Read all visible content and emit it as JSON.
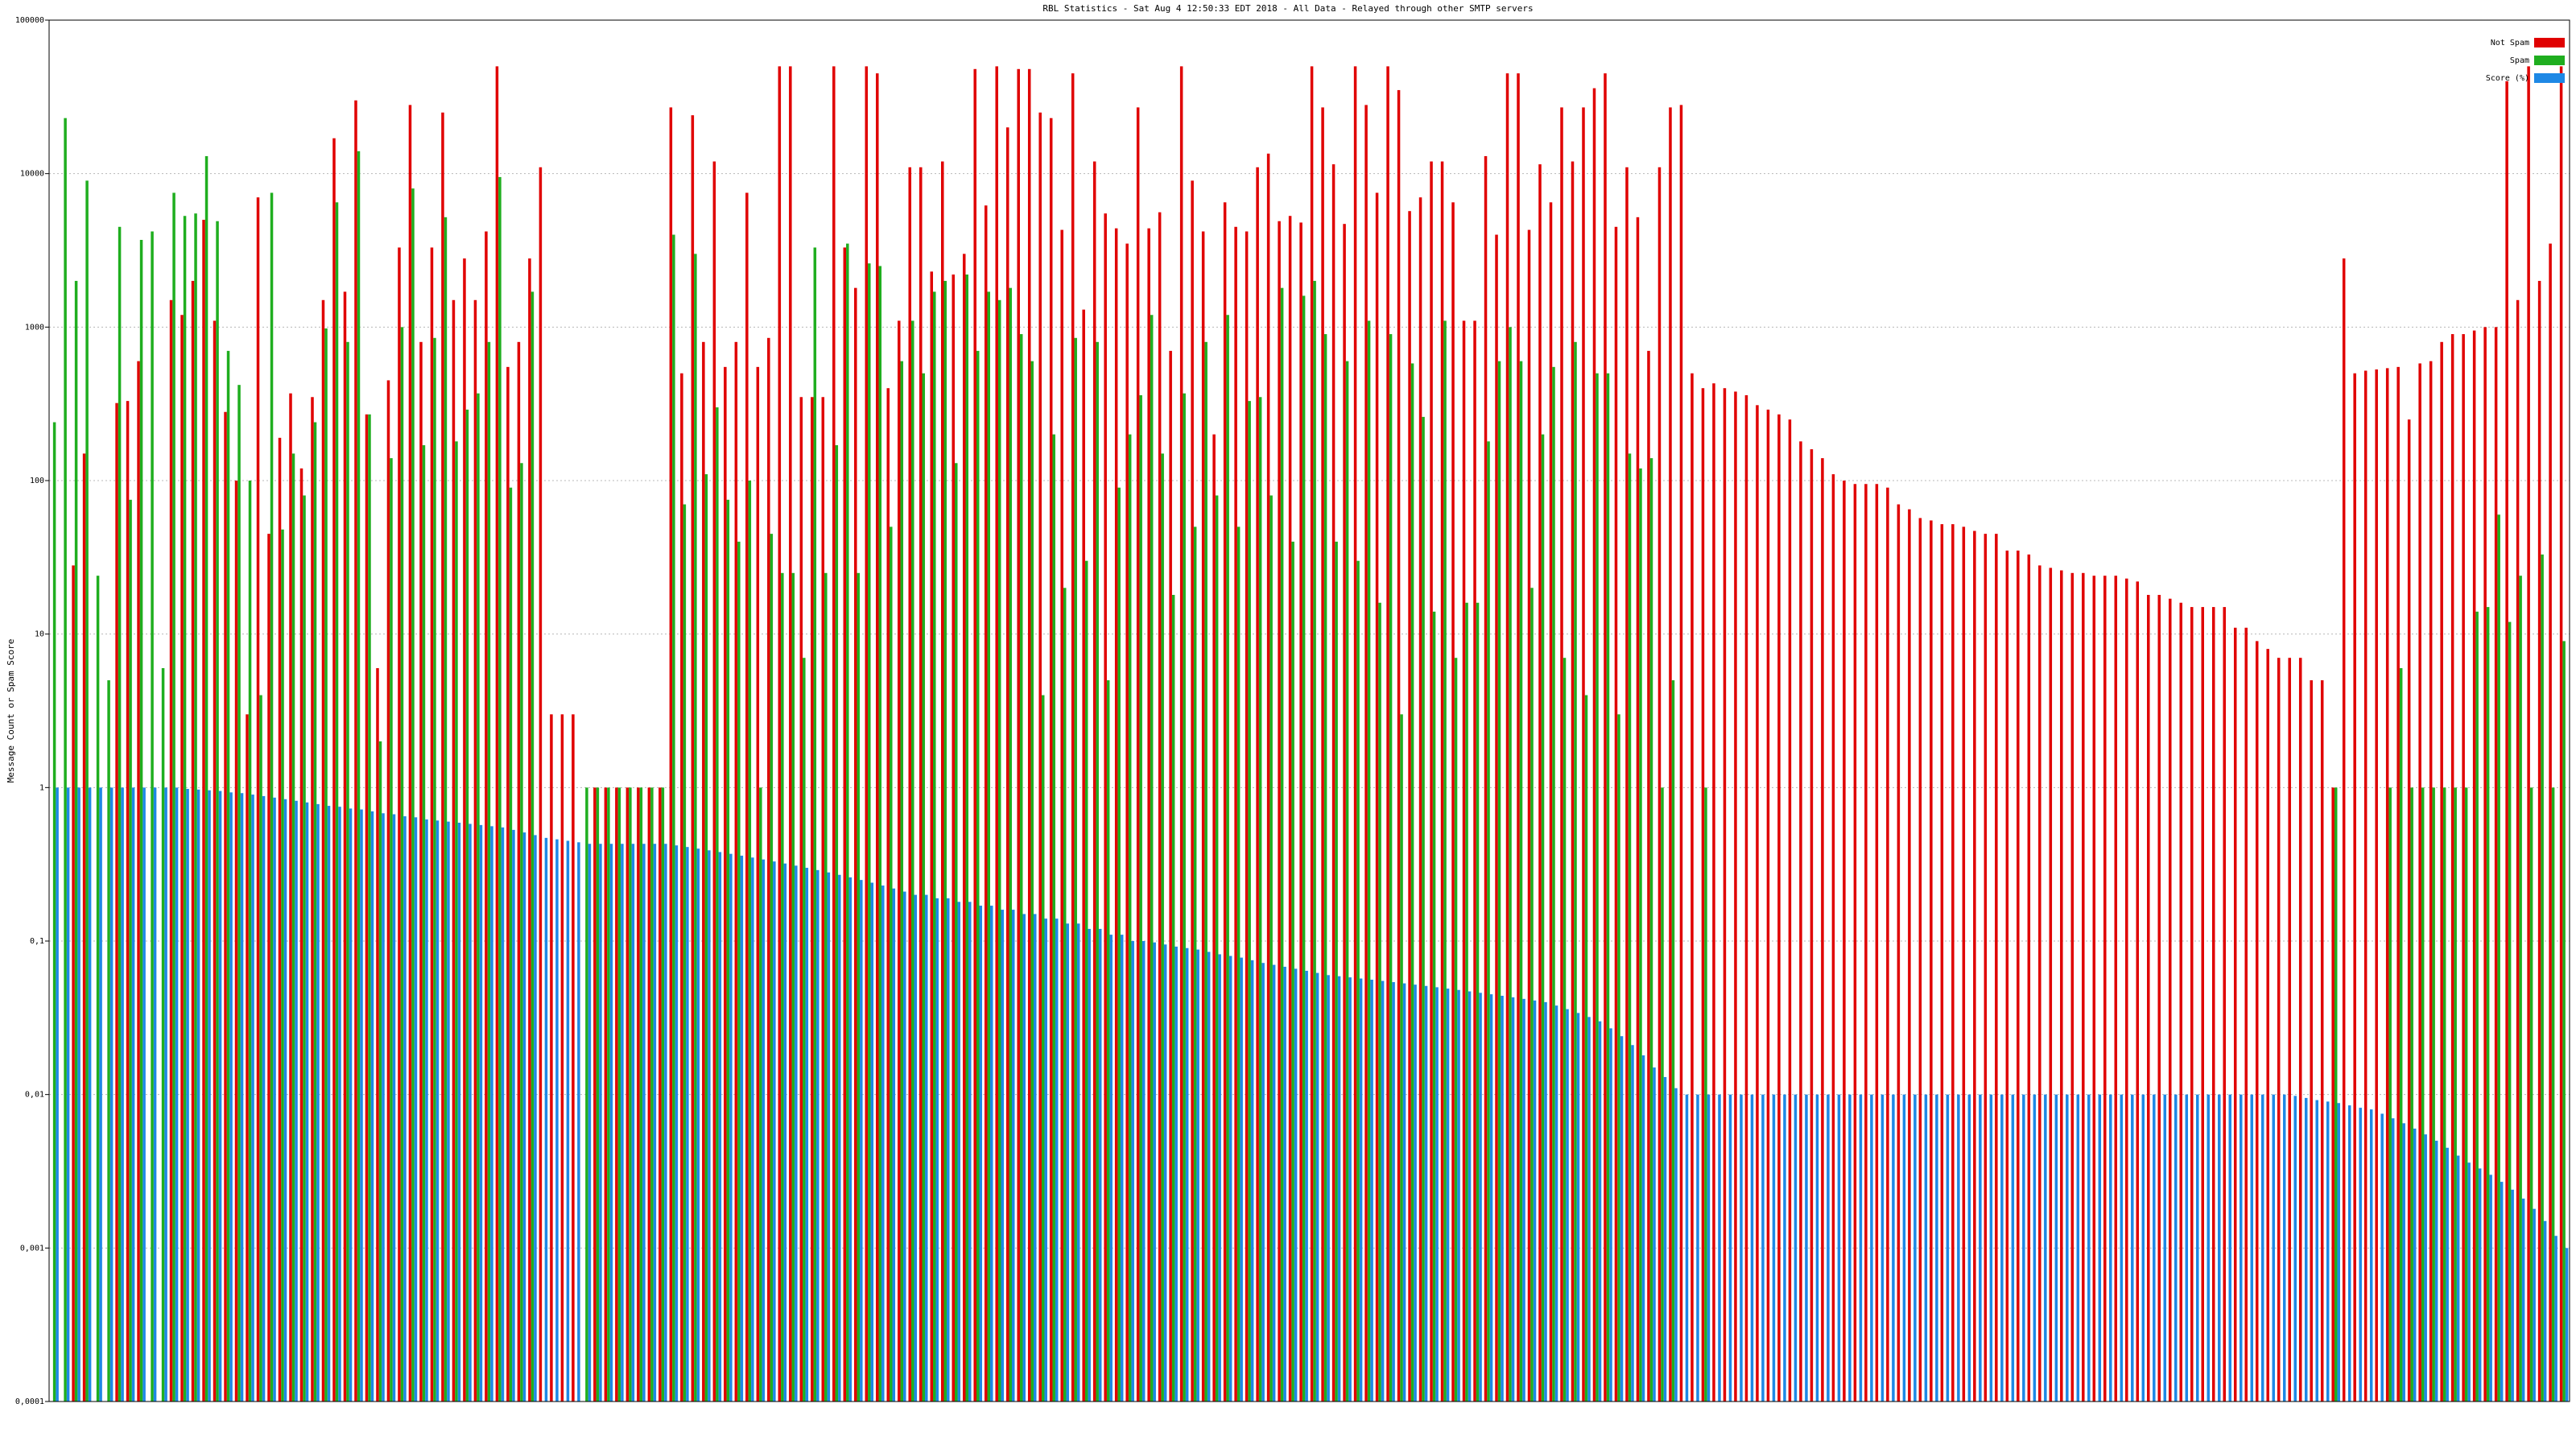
{
  "chart_data": {
    "type": "bar",
    "title": "RBL Statistics - Sat Aug  4 12:50:33 EDT 2018 - All Data - Relayed through other SMTP servers",
    "ylabel": "Message Count or Spam Score",
    "log_scale": true,
    "grid": true,
    "legend": "upper right",
    "ylim": [
      0.0001,
      100000
    ],
    "yticks": [
      {
        "value": 0.0001,
        "label": "0,0001"
      },
      {
        "value": 0.001,
        "label": "0,001"
      },
      {
        "value": 0.01,
        "label": "0,01"
      },
      {
        "value": 0.1,
        "label": "0,1"
      },
      1,
      10,
      100,
      1000,
      10000,
      100000
    ],
    "categories": [
      null,
      null,
      null,
      null,
      null,
      null,
      null,
      null,
      null,
      null,
      null,
      null,
      null,
      null,
      null,
      null,
      null,
      null,
      null,
      null,
      null,
      null,
      null,
      null,
      null,
      null,
      null,
      null,
      null,
      null,
      null,
      null,
      null,
      null,
      null,
      null,
      null,
      null,
      null,
      null,
      null,
      null,
      null,
      null,
      null,
      null,
      null,
      null,
      null,
      null,
      null,
      null,
      null,
      null,
      null,
      null,
      null,
      null,
      null,
      null,
      null,
      null,
      null,
      null,
      null,
      null,
      null,
      null,
      null,
      null,
      null,
      null,
      null,
      null,
      null,
      null,
      null,
      null,
      null,
      null,
      null,
      null,
      null,
      null,
      null,
      null,
      null,
      null,
      null,
      null,
      null,
      null,
      null,
      null,
      null,
      null,
      null,
      null,
      null,
      null,
      null,
      null,
      null,
      null,
      null,
      null,
      null,
      null,
      null,
      null,
      null,
      null,
      null,
      null,
      null,
      null,
      null,
      null,
      null,
      null,
      null,
      null,
      null,
      null,
      null,
      null,
      null,
      null,
      null,
      null,
      null,
      null,
      null,
      null,
      null,
      null,
      null,
      null,
      null,
      null,
      null,
      null,
      null,
      null,
      null,
      null,
      null,
      null,
      null,
      null,
      null,
      null,
      null,
      null,
      null,
      null,
      null,
      null,
      null,
      null,
      null,
      null,
      null,
      null,
      null,
      null,
      null,
      null,
      null,
      null,
      null,
      null,
      null,
      null,
      null,
      null,
      null,
      null,
      null,
      null,
      null,
      null,
      null,
      null,
      null,
      null,
      null,
      null,
      null,
      null,
      null,
      null,
      null,
      null,
      null,
      null,
      null,
      null,
      null,
      null,
      null,
      null,
      null,
      null,
      null,
      null,
      null,
      null,
      null,
      null,
      null,
      null,
      null,
      null,
      null,
      null,
      null,
      null,
      null,
      null,
      null,
      null,
      null,
      null,
      null,
      null,
      null,
      null,
      null,
      null,
      null,
      null
    ],
    "series": [
      {
        "name": "Not Spam",
        "color": "#e00000",
        "values": [
          null,
          null,
          28,
          150,
          null,
          null,
          320,
          330,
          600,
          null,
          null,
          1500,
          1200,
          2000,
          5000,
          1100,
          280,
          100,
          3,
          7000,
          45,
          190,
          370,
          120,
          350,
          1500,
          17000,
          1700,
          30000,
          270,
          6,
          450,
          3300,
          28000,
          800,
          3300,
          25000,
          1500,
          2800,
          1500,
          4200,
          50000,
          550,
          800,
          2800,
          11000,
          3,
          3,
          3,
          null,
          1,
          1,
          1,
          1,
          1,
          1,
          1,
          27000,
          500,
          24000,
          800,
          12000,
          550,
          800,
          7500,
          550,
          850,
          50000,
          50000,
          350,
          350,
          350,
          50000,
          3300,
          1800,
          50000,
          45000,
          400,
          1100,
          11000,
          11000,
          2300,
          12000,
          2200,
          3000,
          48000,
          6200,
          50000,
          20000,
          48000,
          48000,
          25000,
          23000,
          4300,
          45000,
          1300,
          12000,
          5500,
          4400,
          3500,
          27000,
          4400,
          5600,
          700,
          50000,
          9000,
          4200,
          200,
          6500,
          4500,
          4200,
          11000,
          13500,
          4900,
          5300,
          4800,
          50000,
          27000,
          11500,
          4700,
          50000,
          28000,
          7500,
          50000,
          35000,
          5700,
          7000,
          12000,
          12000,
          6500,
          1100,
          1100,
          13000,
          4000,
          45000,
          45000,
          4300,
          11500,
          6500,
          27000,
          12000,
          27000,
          36000,
          45000,
          4500,
          11000,
          5200,
          700,
          11000,
          27000,
          28000,
          500,
          400,
          430,
          400,
          380,
          360,
          310,
          290,
          270,
          250,
          180,
          160,
          140,
          110,
          100,
          95,
          95,
          95,
          90,
          70,
          65,
          57,
          55,
          52,
          52,
          50,
          47,
          45,
          45,
          35,
          35,
          33,
          28,
          27,
          26,
          25,
          25,
          24,
          24,
          24,
          23,
          22,
          18,
          18,
          17,
          16,
          15,
          15,
          15,
          15,
          11,
          11,
          9,
          8,
          7,
          7,
          7,
          5,
          5,
          1,
          2800,
          500,
          520,
          530,
          540,
          550,
          250,
          580,
          600,
          800,
          900,
          900,
          950,
          1000,
          1000,
          40000,
          1500,
          50000,
          2000,
          3500,
          50000
        ]
      },
      {
        "name": "Spam",
        "color": "#1fae1f",
        "values": [
          240,
          23000,
          2000,
          9000,
          24,
          5,
          4500,
          75,
          3700,
          4200,
          6,
          7500,
          5300,
          5500,
          13000,
          4900,
          700,
          420,
          100,
          4,
          7500,
          48,
          150,
          80,
          240,
          980,
          6500,
          800,
          14000,
          270,
          2,
          140,
          1000,
          8000,
          170,
          850,
          5200,
          180,
          290,
          370,
          800,
          9500,
          90,
          130,
          1700,
          null,
          null,
          null,
          null,
          1,
          1,
          1,
          1,
          1,
          1,
          1,
          1,
          4000,
          70,
          3000,
          110,
          300,
          75,
          40,
          100,
          1,
          45,
          25,
          25,
          7,
          3300,
          25,
          170,
          3500,
          25,
          2600,
          2500,
          50,
          600,
          1100,
          500,
          1700,
          2000,
          130,
          2200,
          700,
          1700,
          1500,
          1800,
          900,
          600,
          4,
          200,
          20,
          850,
          30,
          800,
          5,
          90,
          200,
          360,
          1200,
          150,
          18,
          370,
          50,
          800,
          80,
          1200,
          50,
          330,
          350,
          80,
          1800,
          40,
          1600,
          2000,
          900,
          40,
          600,
          30,
          1100,
          16,
          900,
          3,
          580,
          260,
          14,
          1100,
          7,
          16,
          16,
          180,
          600,
          1000,
          600,
          20,
          200,
          550,
          7,
          800,
          4,
          500,
          500,
          3,
          150,
          120,
          140,
          1,
          5,
          null,
          null,
          1,
          null,
          null,
          null,
          null,
          null,
          null,
          null,
          null,
          null,
          null,
          null,
          null,
          null,
          null,
          null,
          null,
          null,
          null,
          null,
          null,
          null,
          null,
          null,
          null,
          null,
          null,
          null,
          null,
          null,
          null,
          null,
          null,
          null,
          null,
          null,
          null,
          null,
          null,
          null,
          null,
          null,
          null,
          null,
          null,
          null,
          null,
          null,
          null,
          null,
          null,
          null,
          null,
          null,
          null,
          null,
          null,
          null,
          1,
          null,
          null,
          null,
          null,
          1,
          6,
          1,
          1,
          1,
          1,
          1,
          1,
          14,
          15,
          60,
          12,
          24,
          1,
          33,
          1,
          9
        ]
      },
      {
        "name": "Score (%)",
        "color": "#1e88e5",
        "values": [
          1,
          1,
          1,
          1,
          1,
          1,
          1,
          1,
          1,
          1,
          1,
          1,
          0.98,
          0.97,
          0.96,
          0.95,
          0.93,
          0.92,
          0.9,
          0.88,
          0.86,
          0.84,
          0.82,
          0.8,
          0.78,
          0.76,
          0.75,
          0.73,
          0.72,
          0.7,
          0.68,
          0.67,
          0.65,
          0.64,
          0.62,
          0.61,
          0.6,
          0.59,
          0.58,
          0.57,
          0.56,
          0.55,
          0.53,
          0.51,
          0.49,
          0.47,
          0.46,
          0.45,
          0.44,
          0.43,
          0.43,
          0.43,
          0.43,
          0.43,
          0.43,
          0.43,
          0.43,
          0.42,
          0.41,
          0.4,
          0.39,
          0.38,
          0.37,
          0.36,
          0.35,
          0.34,
          0.33,
          0.32,
          0.31,
          0.3,
          0.29,
          0.28,
          0.27,
          0.26,
          0.25,
          0.24,
          0.23,
          0.22,
          0.21,
          0.2,
          0.2,
          0.19,
          0.19,
          0.18,
          0.18,
          0.17,
          0.17,
          0.16,
          0.16,
          0.15,
          0.15,
          0.14,
          0.14,
          0.13,
          0.13,
          0.12,
          0.12,
          0.11,
          0.11,
          0.1,
          0.1,
          0.098,
          0.095,
          0.092,
          0.09,
          0.088,
          0.085,
          0.082,
          0.08,
          0.078,
          0.075,
          0.072,
          0.07,
          0.068,
          0.066,
          0.064,
          0.062,
          0.06,
          0.059,
          0.058,
          0.057,
          0.056,
          0.055,
          0.054,
          0.053,
          0.052,
          0.051,
          0.05,
          0.049,
          0.048,
          0.047,
          0.046,
          0.045,
          0.044,
          0.043,
          0.042,
          0.041,
          0.04,
          0.038,
          0.036,
          0.034,
          0.032,
          0.03,
          0.027,
          0.024,
          0.021,
          0.018,
          0.015,
          0.013,
          0.011,
          0.01,
          0.01,
          0.01,
          0.01,
          0.01,
          0.01,
          0.01,
          0.01,
          0.01,
          0.01,
          0.01,
          0.01,
          0.01,
          0.01,
          0.01,
          0.01,
          0.01,
          0.01,
          0.01,
          0.01,
          0.01,
          0.01,
          0.01,
          0.01,
          0.01,
          0.01,
          0.01,
          0.01,
          0.01,
          0.01,
          0.01,
          0.01,
          0.01,
          0.01,
          0.01,
          0.01,
          0.01,
          0.01,
          0.01,
          0.01,
          0.01,
          0.01,
          0.01,
          0.01,
          0.01,
          0.01,
          0.01,
          0.01,
          0.01,
          0.01,
          0.01,
          0.01,
          0.01,
          0.01,
          0.01,
          0.01,
          0.0098,
          0.0095,
          0.0092,
          0.009,
          0.0088,
          0.0085,
          0.0082,
          0.008,
          0.0075,
          0.007,
          0.0065,
          0.006,
          0.0055,
          0.005,
          0.0045,
          0.004,
          0.0036,
          0.0033,
          0.003,
          0.0027,
          0.0024,
          0.0021,
          0.0018,
          0.0015,
          0.0012,
          0.001
        ]
      }
    ]
  }
}
